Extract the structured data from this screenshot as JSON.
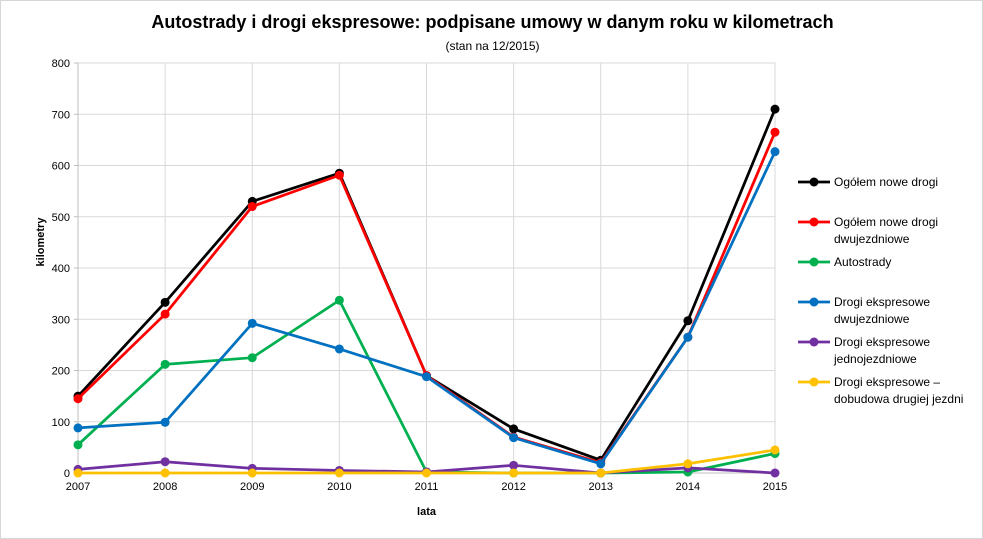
{
  "chart_data": {
    "type": "line",
    "title": "Autostrady i drogi ekspresowe: podpisane umowy w danym roku w kilometrach",
    "subtitle": "(stan na 12/2015)",
    "xlabel": "lata",
    "ylabel": "kilometry",
    "x": [
      "2007",
      "2008",
      "2009",
      "2010",
      "2011",
      "2012",
      "2013",
      "2014",
      "2015"
    ],
    "ylim": [
      0,
      800
    ],
    "ytick_step": 100,
    "grid": true,
    "legend_position": "right",
    "colors": {
      "gridline": "#d9d9d9",
      "axis": "#bfbfbf",
      "text": "#000000"
    },
    "series": [
      {
        "name": "Ogółem nowe drogi",
        "label_lines": [
          "Ogółem nowe drogi"
        ],
        "color": "#000000",
        "values": [
          150,
          333,
          530,
          585,
          190,
          86,
          25,
          297,
          710
        ]
      },
      {
        "name": "Ogółem nowe drogi dwujezdniowe",
        "label_lines": [
          "Ogółem nowe drogi",
          "dwujezdniowe"
        ],
        "color": "#ff0000",
        "values": [
          145,
          310,
          520,
          581,
          190,
          70,
          20,
          265,
          665
        ]
      },
      {
        "name": "Autostrady",
        "label_lines": [
          "Autostrady"
        ],
        "color": "#00b050",
        "values": [
          55,
          212,
          225,
          337,
          2,
          0,
          0,
          2,
          38
        ]
      },
      {
        "name": "Drogi ekspresowe dwujezdniowe",
        "label_lines": [
          "Drogi ekspresowe",
          "dwujezdniowe"
        ],
        "color": "#0070c0",
        "values": [
          88,
          99,
          292,
          242,
          188,
          69,
          18,
          265,
          627
        ]
      },
      {
        "name": "Drogi ekspresowe jednojezdniowe",
        "label_lines": [
          "Drogi ekspresowe",
          "jednojezdniowe"
        ],
        "color": "#7030a0",
        "values": [
          7,
          22,
          9,
          5,
          2,
          15,
          0,
          10,
          0
        ]
      },
      {
        "name": "Drogi ekspresowe – dobudowa drugiej jezdni",
        "label_lines": [
          "Drogi ekspresowe –",
          "dobudowa drugiej jezdni"
        ],
        "color": "#ffc000",
        "values": [
          0,
          0,
          0,
          0,
          0,
          0,
          0,
          18,
          45
        ]
      }
    ]
  }
}
